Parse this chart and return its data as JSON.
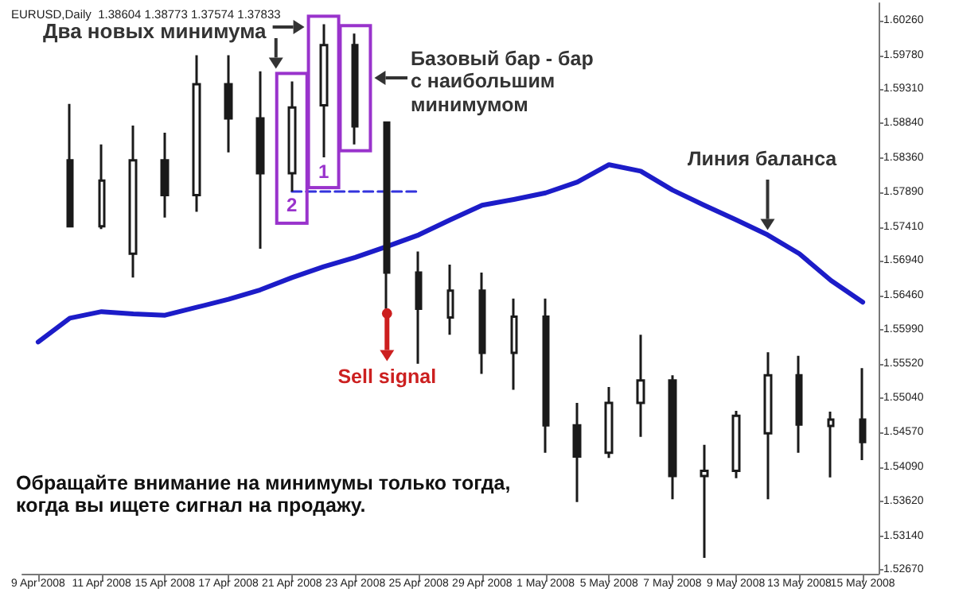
{
  "chart_data": {
    "type": "candlestick",
    "title": "EURUSD,Daily  1.38604 1.38773 1.37574 1.37833",
    "color": "#1a1a1a",
    "categories": [
      "9 Apr 2008",
      null,
      "11 Apr 2008",
      null,
      "15 Apr 2008",
      null,
      "17 Apr 2008",
      null,
      "21 Apr 2008",
      null,
      "23 Apr 2008",
      null,
      "25 Apr 2008",
      null,
      "29 Apr 2008",
      null,
      "1 May 2008",
      null,
      "5 May 2008",
      null,
      "7 May 2008",
      null,
      "9 May 2008",
      null,
      "13 May 2008",
      null,
      "15 May 2008"
    ],
    "ohlc": [
      null,
      [
        1.5833,
        1.5911,
        1.5742,
        1.5742
      ],
      [
        1.5742,
        1.5855,
        1.5738,
        1.5805
      ],
      [
        1.5704,
        1.5881,
        1.5671,
        1.5833
      ],
      [
        1.5833,
        1.5871,
        1.5754,
        1.5785
      ],
      [
        1.5785,
        1.5978,
        1.5762,
        1.5938
      ],
      [
        1.5938,
        1.5978,
        1.5844,
        1.5891
      ],
      [
        1.5891,
        1.5956,
        1.5711,
        1.5815
      ],
      [
        1.5815,
        1.5942,
        1.579,
        1.5906
      ],
      [
        1.5909,
        1.6021,
        1.5837,
        1.5992
      ],
      [
        1.5992,
        1.6008,
        1.5855,
        1.588
      ],
      [
        1.5885,
        1.5885,
        1.5628,
        1.5678
      ],
      [
        1.5678,
        1.5707,
        1.5552,
        1.5628
      ],
      [
        1.5616,
        1.5689,
        1.5592,
        1.5653
      ],
      [
        1.5653,
        1.5678,
        1.5538,
        1.5567
      ],
      [
        1.5567,
        1.5642,
        1.5516,
        1.5617
      ],
      [
        1.5617,
        1.5642,
        1.5429,
        1.5467
      ],
      [
        1.5467,
        1.5498,
        1.5361,
        1.5424
      ],
      [
        1.5429,
        1.552,
        1.5422,
        1.5498
      ],
      [
        1.5498,
        1.5592,
        1.5451,
        1.5529
      ],
      [
        1.5529,
        1.5536,
        1.5365,
        1.5397
      ],
      [
        1.5397,
        1.544,
        1.5284,
        1.5404
      ],
      [
        1.5404,
        1.5487,
        1.5394,
        1.548
      ],
      [
        1.5456,
        1.5568,
        1.5365,
        1.5536
      ],
      [
        1.5536,
        1.5563,
        1.5429,
        1.5468
      ],
      [
        1.5466,
        1.5486,
        1.5395,
        1.5475
      ],
      [
        1.5475,
        1.5546,
        1.5419,
        1.5444
      ]
    ],
    "series": [
      {
        "type": "line",
        "color": "#1c1cc8",
        "values": [
          1.5582,
          1.5615,
          1.5624,
          1.5621,
          1.5619,
          1.563,
          1.5641,
          1.5654,
          1.5671,
          1.5686,
          1.5699,
          1.5714,
          1.573,
          1.5751,
          1.5771,
          1.5779,
          1.5788,
          1.5803,
          1.5827,
          1.5818,
          1.5792,
          1.5771,
          1.5751,
          1.573,
          1.5704,
          1.5667,
          1.5637
        ]
      },
      {
        "type": "line",
        "color": "#3333dd",
        "line_style": "dashed",
        "values": [
          null,
          null,
          null,
          null,
          null,
          null,
          null,
          null,
          1.579,
          1.579,
          1.579,
          1.579,
          1.579,
          null,
          null,
          null,
          null,
          null,
          null,
          null,
          null,
          null,
          null,
          null,
          null,
          null,
          null
        ]
      }
    ],
    "ylim": [
      1.5262,
      1.605
    ],
    "yticks": [
      {
        "value": 1.6026,
        "label": "1.60260"
      },
      {
        "value": 1.5978,
        "label": "1.59780"
      },
      {
        "value": 1.5931,
        "label": "1.59310"
      },
      {
        "value": 1.5884,
        "label": "1.58840"
      },
      {
        "value": 1.5836,
        "label": "1.58360"
      },
      {
        "value": 1.5789,
        "label": "1.57890"
      },
      {
        "value": 1.5741,
        "label": "1.57410"
      },
      {
        "value": 1.5694,
        "label": "1.56940"
      },
      {
        "value": 1.5646,
        "label": "1.56460"
      },
      {
        "value": 1.5599,
        "label": "1.55990"
      },
      {
        "value": 1.5552,
        "label": "1.55520"
      },
      {
        "value": 1.5504,
        "label": "1.55040"
      },
      {
        "value": 1.5457,
        "label": "1.54570"
      },
      {
        "value": 1.5409,
        "label": "1.54090"
      },
      {
        "value": 1.5362,
        "label": "1.53620"
      },
      {
        "value": 1.5314,
        "label": "1.53140"
      },
      {
        "value": 1.5267,
        "label": "1.52670"
      }
    ],
    "annotations": [
      "Два новых минимума",
      "Базовый бар - бар с наибольшим минимумом",
      "Линия баланса",
      "Sell signal",
      "1",
      "2",
      "Обращайте внимание на минимумы только тогда, когда вы ищете сигнал на продажу."
    ]
  }
}
